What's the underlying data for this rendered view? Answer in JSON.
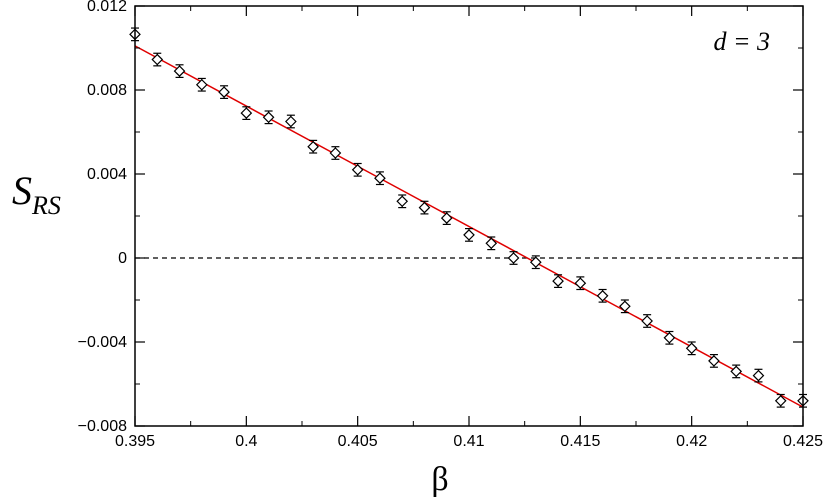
{
  "chart_data": {
    "type": "scatter",
    "xlabel": "β",
    "ylabel": {
      "main": "S",
      "subscript": "RS"
    },
    "annotation": "d = 3",
    "xlim": [
      0.395,
      0.425
    ],
    "ylim": [
      -0.008,
      0.012
    ],
    "x_ticks": [
      0.395,
      0.4,
      0.405,
      0.41,
      0.415,
      0.42,
      0.425
    ],
    "x_tick_labels": [
      "0.395",
      "0.4",
      "0.405",
      "0.41",
      "0.415",
      "0.42",
      "0.425"
    ],
    "y_ticks": [
      -0.008,
      -0.004,
      0,
      0.004,
      0.008,
      0.012
    ],
    "y_tick_labels": [
      "−0.008",
      "−0.004",
      "0",
      "0.004",
      "0.008",
      "0.012"
    ],
    "grid": false,
    "reference_line": {
      "y": 0,
      "style": "dashed",
      "color": "#000000"
    },
    "fit_line": {
      "x": [
        0.395,
        0.425
      ],
      "y": [
        0.0101,
        -0.0071
      ],
      "color": "#e00000"
    },
    "series": [
      {
        "marker": "diamond-open",
        "color": "#000000",
        "points": [
          {
            "x": 0.395,
            "y": 0.01065,
            "err": 0.0003
          },
          {
            "x": 0.396,
            "y": 0.00945,
            "err": 0.0003
          },
          {
            "x": 0.397,
            "y": 0.0089,
            "err": 0.0003
          },
          {
            "x": 0.398,
            "y": 0.00825,
            "err": 0.0003
          },
          {
            "x": 0.399,
            "y": 0.0079,
            "err": 0.0003
          },
          {
            "x": 0.4,
            "y": 0.0069,
            "err": 0.0003
          },
          {
            "x": 0.401,
            "y": 0.0067,
            "err": 0.0003
          },
          {
            "x": 0.402,
            "y": 0.0065,
            "err": 0.0003
          },
          {
            "x": 0.403,
            "y": 0.0053,
            "err": 0.0003
          },
          {
            "x": 0.404,
            "y": 0.005,
            "err": 0.0003
          },
          {
            "x": 0.405,
            "y": 0.0042,
            "err": 0.0003
          },
          {
            "x": 0.406,
            "y": 0.0038,
            "err": 0.0003
          },
          {
            "x": 0.407,
            "y": 0.0027,
            "err": 0.0003
          },
          {
            "x": 0.408,
            "y": 0.0024,
            "err": 0.0003
          },
          {
            "x": 0.409,
            "y": 0.0019,
            "err": 0.0003
          },
          {
            "x": 0.41,
            "y": 0.0011,
            "err": 0.0003
          },
          {
            "x": 0.411,
            "y": 0.0007,
            "err": 0.0003
          },
          {
            "x": 0.412,
            "y": 0.0,
            "err": 0.0003
          },
          {
            "x": 0.413,
            "y": -0.0002,
            "err": 0.0003
          },
          {
            "x": 0.414,
            "y": -0.0011,
            "err": 0.0003
          },
          {
            "x": 0.415,
            "y": -0.0012,
            "err": 0.0003
          },
          {
            "x": 0.416,
            "y": -0.0018,
            "err": 0.0003
          },
          {
            "x": 0.417,
            "y": -0.0023,
            "err": 0.0003
          },
          {
            "x": 0.418,
            "y": -0.003,
            "err": 0.0003
          },
          {
            "x": 0.419,
            "y": -0.0038,
            "err": 0.0003
          },
          {
            "x": 0.42,
            "y": -0.0043,
            "err": 0.0003
          },
          {
            "x": 0.421,
            "y": -0.0049,
            "err": 0.0003
          },
          {
            "x": 0.422,
            "y": -0.0054,
            "err": 0.0003
          },
          {
            "x": 0.423,
            "y": -0.0056,
            "err": 0.0003
          },
          {
            "x": 0.424,
            "y": -0.0068,
            "err": 0.0003
          },
          {
            "x": 0.425,
            "y": -0.0068,
            "err": 0.0003
          }
        ]
      }
    ]
  }
}
